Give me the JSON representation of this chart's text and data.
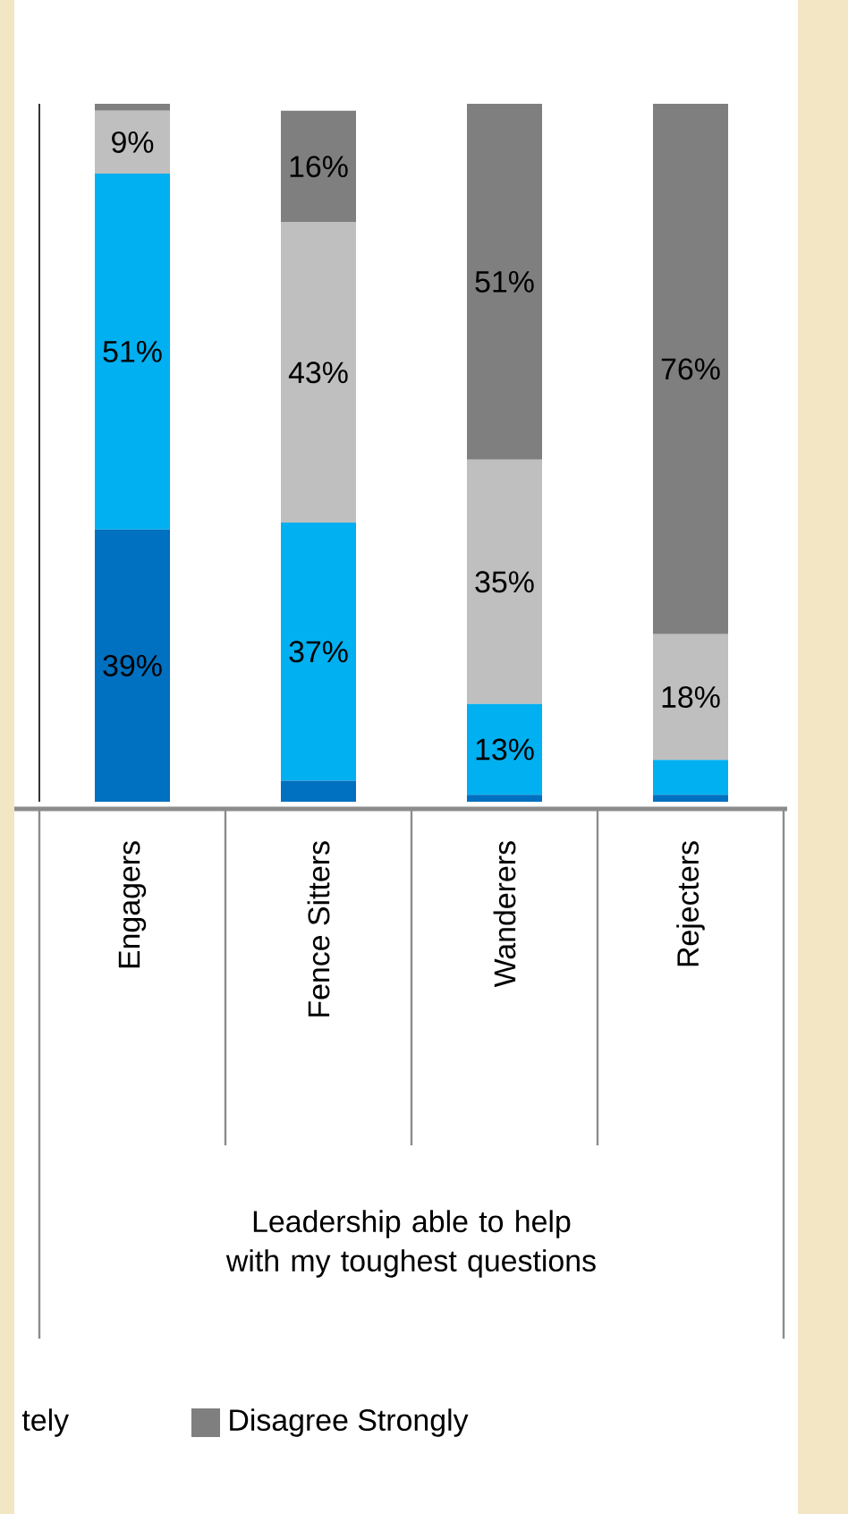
{
  "chart_data": {
    "type": "bar",
    "stacked": true,
    "categories": [
      "Engagers",
      "Fence Sitters",
      "Wanderers",
      "Rejecters"
    ],
    "series": [
      {
        "color": "#0070c0",
        "values": [
          39,
          3,
          1,
          1
        ],
        "value_labels": [
          "39%",
          null,
          null,
          null
        ]
      },
      {
        "color": "#00b0f0",
        "values": [
          51,
          37,
          13,
          5
        ],
        "value_labels": [
          "51%",
          "37%",
          "13%",
          null
        ]
      },
      {
        "color": "#bfbfbf",
        "values": [
          9,
          43,
          35,
          18
        ],
        "value_labels": [
          "9%",
          "43%",
          "35%",
          "18%"
        ]
      },
      {
        "name": "Disagree Strongly",
        "color": "#7f7f7f",
        "values": [
          1,
          16,
          51,
          76
        ],
        "value_labels": [
          null,
          "16%",
          "51%",
          "76%"
        ]
      }
    ],
    "ylim": [
      0,
      100
    ],
    "legend": "bottom",
    "annotations": [
      "Leadership able to help with my toughest questions",
      "tely"
    ]
  }
}
